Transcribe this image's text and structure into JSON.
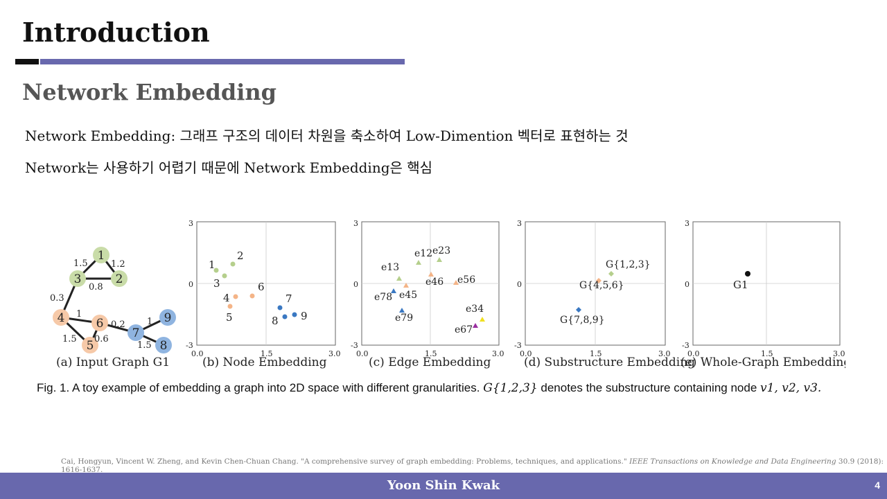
{
  "slide": {
    "title": "Introduction",
    "subtitle": "Network Embedding",
    "line1": "Network Embedding: 그래프 구조의 데이터 차원을 축소하여 Low-Dimention 벡터로 표현하는 것",
    "line2": "Network는 사용하기 어렵기 때문에 Network Embedding은 핵심",
    "citation_plain": "Cai, Hongyun, Vincent W. Zheng, and Kevin Chen-Chuan Chang. \"A comprehensive survey of graph embedding: Problems, techniques, and applications.\"",
    "citation_journal": "IEEE Transactions on Knowledge and Data Engineering",
    "citation_tail": "30.9 (2018): 1616-1637.",
    "footer_name": "Yoon Shin Kwak",
    "page_number": "4"
  },
  "figure": {
    "caption_prefix": "Fig. 1. A toy example of embedding a graph into 2D space with different granularities.",
    "caption_math": "G{1,2,3}",
    "caption_mid": "denotes the substructure containing node",
    "caption_nodes": "v1, v2, v3.",
    "panels": [
      "(a) Input Graph G1",
      "(b) Node Embedding",
      "(c) Edge Embedding",
      "(d) Substructure Embedding",
      "(e) Whole-Graph Embedding"
    ],
    "axis_ticks": {
      "y_top": "3",
      "y_mid": "0",
      "y_bot": "-3",
      "x_left": "0.0",
      "x_mid": "1.5",
      "x_right": "3.0"
    },
    "graph": {
      "nodes": [
        "1",
        "2",
        "3",
        "4",
        "5",
        "6",
        "7",
        "8",
        "9"
      ],
      "edge_weights": [
        "1.5",
        "1.2",
        "0.8",
        "0.3",
        "1",
        "1.5",
        "0.6",
        "0.2",
        "1",
        "1.5"
      ]
    },
    "node_labels": [
      "1",
      "2",
      "3",
      "4",
      "5",
      "6",
      "7",
      "8",
      "9"
    ],
    "edge_labels": [
      "e12",
      "e13",
      "e23",
      "e45",
      "e46",
      "e56",
      "e78",
      "e79",
      "e34",
      "e67"
    ],
    "substructure_labels": [
      "G{1,2,3}",
      "G{4,5,6}",
      "G{7,8,9}"
    ],
    "whole_graph_label": "G1"
  }
}
